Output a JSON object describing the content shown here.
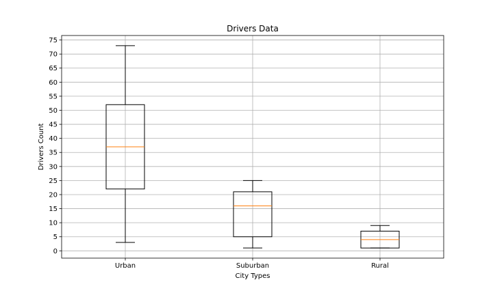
{
  "chart_data": {
    "type": "box",
    "title": "Drivers Data",
    "xlabel": "City Types",
    "ylabel": "Drivers Count",
    "categories": [
      "Urban",
      "Suburban",
      "Rural"
    ],
    "boxes": [
      {
        "category": "Urban",
        "whisker_low": 3,
        "q1": 22,
        "median": 37,
        "q3": 52,
        "whisker_high": 73
      },
      {
        "category": "Suburban",
        "whisker_low": 1,
        "q1": 5,
        "median": 16,
        "q3": 21,
        "whisker_high": 25
      },
      {
        "category": "Rural",
        "whisker_low": 1,
        "q1": 1,
        "median": 4,
        "q3": 7,
        "whisker_high": 9
      }
    ],
    "ylim": [
      -2.6,
      76.6
    ],
    "yticks": [
      0,
      5,
      10,
      15,
      20,
      25,
      30,
      35,
      40,
      45,
      50,
      55,
      60,
      65,
      70,
      75
    ],
    "grid": true,
    "colors": {
      "box": "#000000",
      "median": "#ff7f0e",
      "grid": "#b0b0b0"
    }
  }
}
